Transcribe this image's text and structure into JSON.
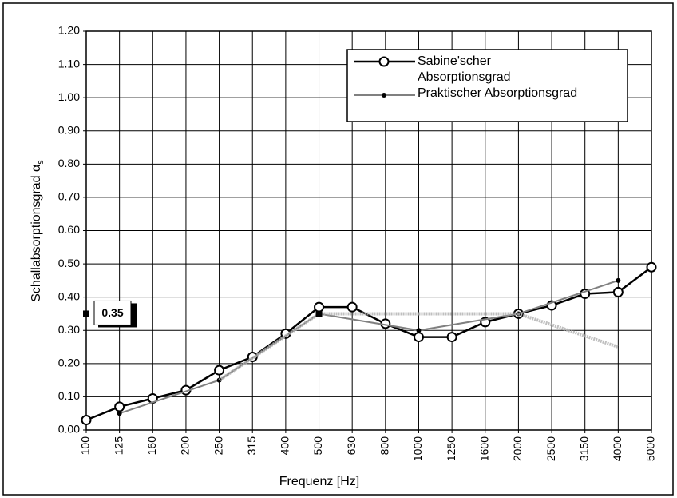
{
  "chart_data": {
    "type": "line",
    "xlabel": "Frequenz  [Hz]",
    "ylabel": "Schallabsorptionsgrad α",
    "ylabel_subscript": "s",
    "categories": [
      "100",
      "125",
      "160",
      "200",
      "250",
      "315",
      "400",
      "500",
      "630",
      "800",
      "1000",
      "1250",
      "1600",
      "2000",
      "2500",
      "3150",
      "4000",
      "5000"
    ],
    "series": [
      {
        "name": "Sabine'scher Absorptionsgrad",
        "color": "#000000",
        "values": [
          0.03,
          0.07,
          0.095,
          0.12,
          0.18,
          0.22,
          0.29,
          0.37,
          0.37,
          0.32,
          0.28,
          0.28,
          0.325,
          0.35,
          0.375,
          0.41,
          0.415,
          0.49
        ]
      },
      {
        "name": "Praktischer Absorptionsgrad",
        "color": "#808080",
        "values": [
          null,
          0.05,
          null,
          null,
          0.15,
          null,
          null,
          0.35,
          null,
          null,
          0.3,
          null,
          null,
          0.35,
          null,
          null,
          0.45,
          null
        ]
      },
      {
        "color": "#b0b0b0",
        "values": [
          null,
          null,
          null,
          null,
          0.15,
          null,
          null,
          0.35,
          null,
          null,
          0.35,
          null,
          null,
          0.35,
          null,
          null,
          0.25,
          null
        ]
      }
    ],
    "annotation_value": 0.35,
    "ylim": [
      0,
      1.2
    ],
    "yticks": [
      {
        "value": 0,
        "label": "0.00"
      },
      {
        "value": 0.1,
        "label": "0.10"
      },
      {
        "value": 0.2,
        "label": "0.20"
      },
      {
        "value": 0.3,
        "label": "0.30"
      },
      {
        "value": 0.4,
        "label": "0.40"
      },
      {
        "value": 0.5,
        "label": "0.50"
      },
      {
        "value": 0.6,
        "label": "0.60"
      },
      {
        "value": 0.7,
        "label": "0.70"
      },
      {
        "value": 0.8,
        "label": "0.80"
      },
      {
        "value": 0.9,
        "label": "0.90"
      },
      {
        "value": 1.0,
        "label": "1.00"
      },
      {
        "value": 1.1,
        "label": "1.10"
      },
      {
        "value": 1.2,
        "label": "1.20"
      }
    ],
    "grid": true,
    "legend": "top-right"
  }
}
